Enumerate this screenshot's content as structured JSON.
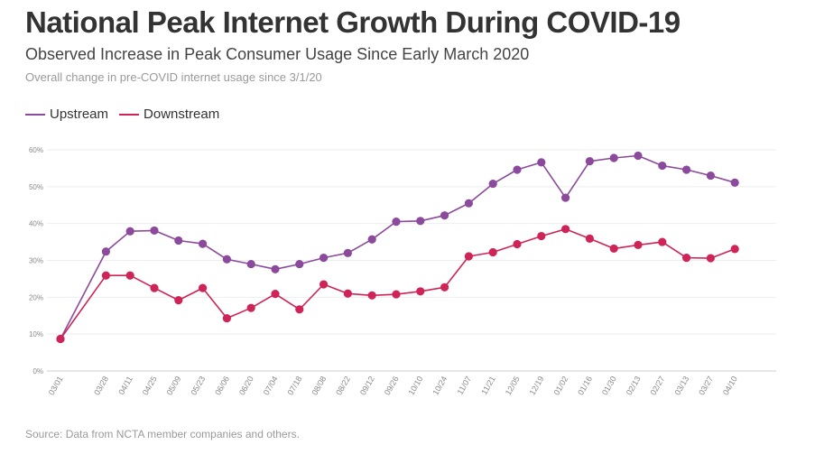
{
  "header": {
    "title": "National Peak Internet Growth During COVID-19",
    "subtitle": "Observed Increase in Peak Consumer Usage Since Early March 2020",
    "note": "Overall change in pre-COVID internet usage since 3/1/20"
  },
  "footer": {
    "source": "Source: Data from NCTA member companies and others."
  },
  "colors": {
    "upstream": "#8b4a9b",
    "downstream": "#cf2457",
    "grid": "#eeeeee",
    "axis": "#cccccc"
  },
  "chart_data": {
    "type": "line",
    "x": [
      "03/01",
      "03/28",
      "04/11",
      "04/25",
      "05/09",
      "05/23",
      "06/06",
      "06/20",
      "07/04",
      "07/18",
      "08/08",
      "08/22",
      "09/12",
      "09/26",
      "10/10",
      "10/24",
      "11/07",
      "11/21",
      "12/05",
      "12/19",
      "01/02",
      "01/16",
      "01/30",
      "02/13",
      "02/27",
      "03/13",
      "03/27",
      "04/10"
    ],
    "series": [
      {
        "name": "Upstream",
        "values": [
          8.7,
          32.4,
          37.9,
          38.1,
          35.4,
          34.5,
          30.3,
          29.0,
          27.6,
          29.0,
          30.7,
          32.0,
          35.7,
          40.5,
          40.7,
          42.2,
          45.5,
          50.8,
          54.6,
          56.6,
          47.0,
          56.9,
          57.8,
          58.4,
          55.7,
          54.6,
          53.0,
          51.1
        ]
      },
      {
        "name": "Downstream",
        "values": [
          8.7,
          25.9,
          25.9,
          22.5,
          19.2,
          22.5,
          14.3,
          17.1,
          20.9,
          16.7,
          23.5,
          21.0,
          20.5,
          20.8,
          21.6,
          22.7,
          31.1,
          32.2,
          34.4,
          36.6,
          38.5,
          35.9,
          33.2,
          34.2,
          35.0,
          30.7,
          30.6,
          33.1
        ]
      }
    ],
    "y_ticks": [
      "0%",
      "10%",
      "20%",
      "30%",
      "40%",
      "50%",
      "60%"
    ],
    "ylim": [
      0,
      60
    ],
    "grid": true,
    "legend_placement": "top-left"
  }
}
